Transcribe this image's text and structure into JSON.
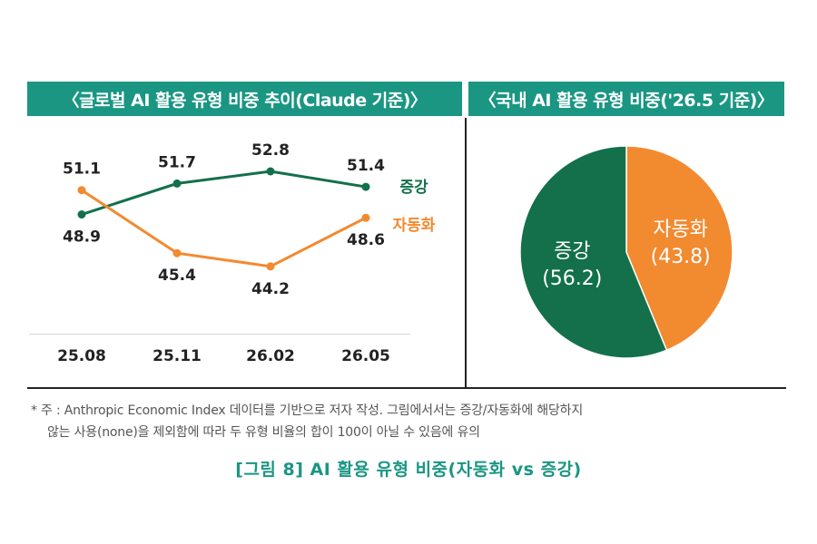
{
  "left_panel": {
    "title": "〈글로벌 AI 활용 유형 비중 추이(Claude 기준)〉"
  },
  "right_panel": {
    "title": "〈국내 AI 활용 유형 비중('26.5 기준)〉"
  },
  "notes": {
    "line1": "* 주 : Anthropic Economic Index 데이터를 기반으로 저자 작성. 그림에서서는 증강/자동화에 해당하지",
    "line2": "않는 사용(none)을 제외함에 따라 두 유형 비율의 합이 100이 아닐 수 있음에 유의"
  },
  "caption": "[그림 8] AI 활용 유형 비중(자동화 vs 증강)",
  "colors": {
    "header": "#1a9683",
    "augmentation": "#13704b",
    "automation": "#f28a30"
  },
  "chart_data": [
    {
      "type": "line",
      "title": "〈글로벌 AI 활용 유형 비중 추이(Claude 기준)〉",
      "categories": [
        "25.08",
        "25.11",
        "26.02",
        "26.05"
      ],
      "series": [
        {
          "name": "증강",
          "values": [
            48.9,
            51.7,
            52.8,
            51.4
          ],
          "color": "#13704b"
        },
        {
          "name": "자동화",
          "values": [
            51.1,
            45.4,
            44.2,
            48.6
          ],
          "color": "#f28a30"
        }
      ],
      "ylim": [
        40,
        56
      ],
      "grid": false,
      "legend": "right"
    },
    {
      "type": "pie",
      "title": "〈국내 AI 활용 유형 비중('26.5 기준)〉",
      "labels": [
        "자동화",
        "증강"
      ],
      "values": [
        43.8,
        56.2
      ],
      "colors": [
        "#f28a30",
        "#13704b"
      ]
    }
  ]
}
